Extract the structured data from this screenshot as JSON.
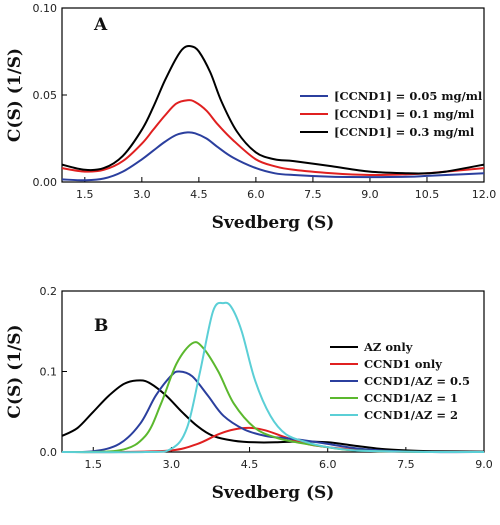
{
  "chart_data": [
    {
      "type": "line",
      "panel_label": "A",
      "xlabel": "Svedberg (S)",
      "ylabel": "C(S) (1/S)",
      "xlim": [
        0.9,
        12.0
      ],
      "ylim": [
        0,
        0.1
      ],
      "xticks": [
        1.5,
        3.0,
        4.5,
        6.0,
        7.5,
        9.0,
        10.5,
        12.0
      ],
      "xtick_labels": [
        "1.5",
        "3.0",
        "4.5",
        "6.0",
        "7.5",
        "9.0",
        "10.5",
        "12.0"
      ],
      "yticks": [
        0,
        0.05,
        0.1
      ],
      "ytick_labels": [
        "0.00",
        "0.05",
        "0.10"
      ],
      "legend_position": "right",
      "series": [
        {
          "name": "[CCND1] = 0.05 mg/ml",
          "color": "#2b3f9e",
          "x": [
            0.9,
            1.5,
            2.0,
            2.5,
            3.0,
            3.3,
            3.6,
            3.9,
            4.2,
            4.4,
            4.7,
            5.0,
            5.4,
            6.0,
            6.5,
            7.0,
            8.0,
            9.0,
            10.0,
            10.5,
            11.0,
            12.0
          ],
          "y": [
            0.0015,
            0.001,
            0.002,
            0.006,
            0.013,
            0.018,
            0.023,
            0.027,
            0.0285,
            0.028,
            0.025,
            0.02,
            0.014,
            0.008,
            0.005,
            0.004,
            0.003,
            0.0028,
            0.003,
            0.0035,
            0.004,
            0.005
          ]
        },
        {
          "name": "[CCND1] = 0.1 mg/ml",
          "color": "#e02020",
          "x": [
            0.9,
            1.5,
            2.0,
            2.5,
            3.0,
            3.3,
            3.6,
            3.9,
            4.2,
            4.4,
            4.7,
            5.0,
            5.4,
            6.0,
            6.5,
            7.0,
            8.0,
            9.0,
            10.0,
            10.5,
            11.0,
            12.0
          ],
          "y": [
            0.008,
            0.006,
            0.007,
            0.012,
            0.022,
            0.03,
            0.038,
            0.045,
            0.047,
            0.046,
            0.041,
            0.033,
            0.024,
            0.013,
            0.009,
            0.007,
            0.005,
            0.004,
            0.0045,
            0.005,
            0.006,
            0.008
          ]
        },
        {
          "name": "[CCND1] = 0.3 mg/ml",
          "color": "#000000",
          "x": [
            0.9,
            1.5,
            2.0,
            2.5,
            3.0,
            3.3,
            3.6,
            3.9,
            4.1,
            4.3,
            4.5,
            4.8,
            5.1,
            5.5,
            6.0,
            6.5,
            7.0,
            8.0,
            9.0,
            10.0,
            10.5,
            11.0,
            12.0
          ],
          "y": [
            0.01,
            0.007,
            0.008,
            0.015,
            0.03,
            0.043,
            0.058,
            0.071,
            0.077,
            0.078,
            0.075,
            0.063,
            0.046,
            0.029,
            0.017,
            0.013,
            0.012,
            0.009,
            0.006,
            0.005,
            0.005,
            0.006,
            0.01
          ]
        }
      ]
    },
    {
      "type": "line",
      "panel_label": "B",
      "xlabel": "Svedberg (S)",
      "ylabel": "C(S) (1/S)",
      "xlim": [
        0.9,
        9.0
      ],
      "ylim": [
        0,
        0.2
      ],
      "xticks": [
        1.5,
        3.0,
        4.5,
        6.0,
        7.5,
        9.0
      ],
      "xtick_labels": [
        "1.5",
        "3.0",
        "4.5",
        "6.0",
        "7.5",
        "9.0"
      ],
      "yticks": [
        0,
        0.1,
        0.2
      ],
      "ytick_labels": [
        "0.0",
        "0.1",
        "0.2"
      ],
      "legend_position": "right",
      "series": [
        {
          "name": "AZ only",
          "color": "#000000",
          "x": [
            0.9,
            1.2,
            1.5,
            1.8,
            2.1,
            2.4,
            2.6,
            2.9,
            3.2,
            3.5,
            3.8,
            4.2,
            4.6,
            5.0,
            5.5,
            6.0,
            6.5,
            7.0,
            7.5,
            8.0,
            9.0
          ],
          "y": [
            0.02,
            0.03,
            0.05,
            0.07,
            0.085,
            0.089,
            0.085,
            0.07,
            0.05,
            0.032,
            0.02,
            0.014,
            0.012,
            0.012,
            0.013,
            0.012,
            0.008,
            0.004,
            0.002,
            0.001,
            0.0005
          ]
        },
        {
          "name": "CCND1 only",
          "color": "#e02020",
          "x": [
            0.9,
            2.0,
            3.0,
            3.5,
            3.9,
            4.2,
            4.5,
            4.8,
            5.2,
            5.6,
            6.0,
            6.5,
            7.0,
            8.0,
            9.0
          ],
          "y": [
            0,
            0,
            0.002,
            0.01,
            0.022,
            0.028,
            0.03,
            0.027,
            0.018,
            0.01,
            0.006,
            0.003,
            0.001,
            0,
            0
          ]
        },
        {
          "name": "CCND1/AZ = 0.5",
          "color": "#2b3f9e",
          "x": [
            0.9,
            1.5,
            2.0,
            2.4,
            2.7,
            3.0,
            3.15,
            3.4,
            3.7,
            4.0,
            4.4,
            4.8,
            5.2,
            5.6,
            6.0,
            6.5,
            7.0,
            8.0,
            9.0
          ],
          "y": [
            0,
            0.001,
            0.01,
            0.035,
            0.07,
            0.095,
            0.1,
            0.094,
            0.07,
            0.045,
            0.028,
            0.02,
            0.017,
            0.014,
            0.01,
            0.005,
            0.002,
            0,
            0
          ]
        },
        {
          "name": "CCND1/AZ = 1",
          "color": "#5bb82e",
          "x": [
            0.9,
            2.0,
            2.5,
            2.8,
            3.1,
            3.4,
            3.6,
            3.9,
            4.2,
            4.6,
            5.0,
            5.4,
            5.8,
            6.2,
            6.5,
            7.0,
            8.0,
            9.0
          ],
          "y": [
            0,
            0.002,
            0.02,
            0.06,
            0.11,
            0.135,
            0.13,
            0.1,
            0.06,
            0.03,
            0.018,
            0.012,
            0.008,
            0.004,
            0.002,
            0.001,
            0,
            0
          ]
        },
        {
          "name": "CCND1/AZ = 2",
          "color": "#5bcfd6",
          "x": [
            0.9,
            2.5,
            3.0,
            3.3,
            3.55,
            3.8,
            4.0,
            4.15,
            4.35,
            4.6,
            4.9,
            5.2,
            5.6,
            6.0,
            6.5,
            7.0,
            8.0,
            9.0
          ],
          "y": [
            0,
            0,
            0.004,
            0.03,
            0.1,
            0.175,
            0.185,
            0.18,
            0.15,
            0.09,
            0.045,
            0.022,
            0.012,
            0.006,
            0.002,
            0.001,
            0,
            0
          ]
        }
      ]
    }
  ]
}
